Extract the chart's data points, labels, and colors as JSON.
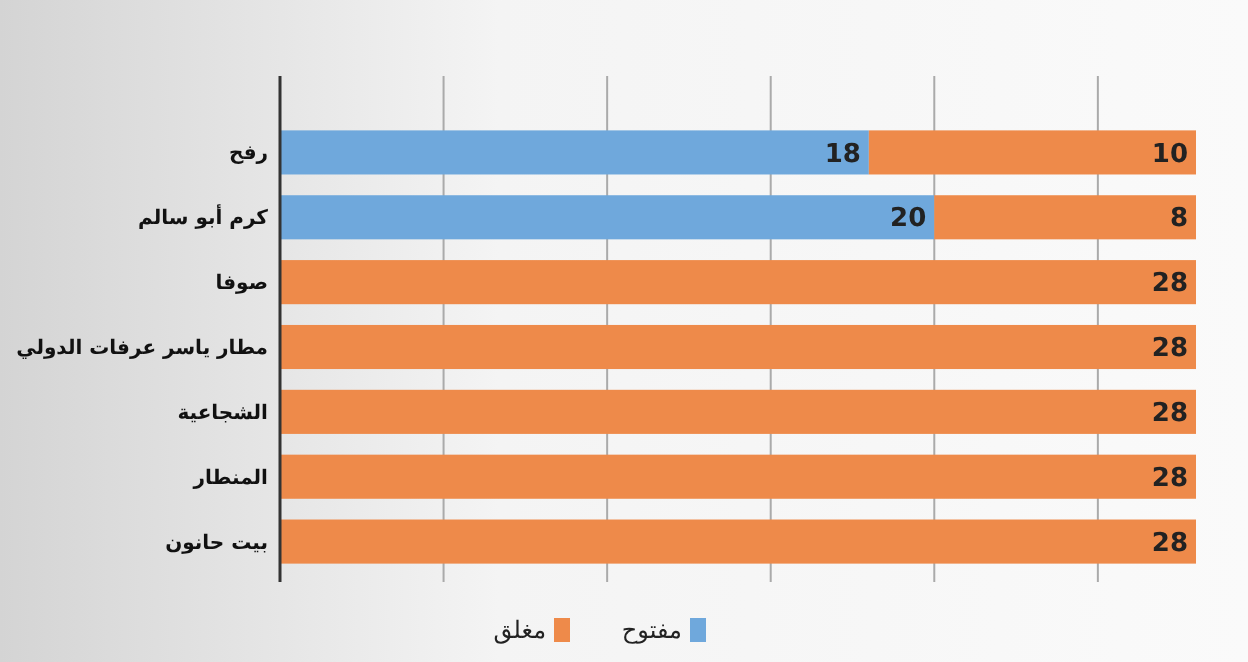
{
  "chart_data": {
    "type": "bar",
    "orientation": "horizontal",
    "stacked": true,
    "categories": [
      "رفح",
      "كرم أبو سالم",
      "صوفا",
      "مطار ياسر عرفات الدولي",
      "الشجاعية",
      "المنطار",
      "بيت حانون"
    ],
    "series": [
      {
        "name": "مفتوح",
        "color": "#6fa8dc",
        "values": [
          18,
          20,
          null,
          null,
          null,
          null,
          null
        ]
      },
      {
        "name": "مغلق",
        "color": "#ee8a4a",
        "values": [
          10,
          8,
          28,
          28,
          28,
          28,
          28
        ]
      }
    ],
    "xlim": [
      0,
      28
    ],
    "xticks": [
      {
        "value": 0,
        "label": null
      },
      {
        "value": 5,
        "label": null
      },
      {
        "value": 10,
        "label": null
      },
      {
        "value": 15,
        "label": null
      },
      {
        "value": 20,
        "label": null
      },
      {
        "value": 25,
        "label": null
      }
    ],
    "tick_labels": "y",
    "grid": "x",
    "legend": "bottom",
    "data_labels": true
  }
}
